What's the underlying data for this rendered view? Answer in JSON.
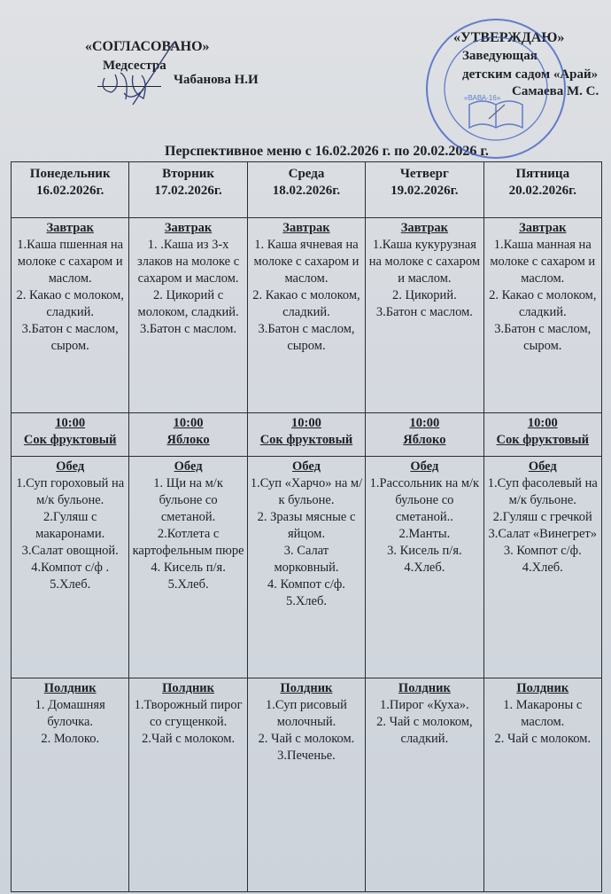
{
  "approval_left": {
    "label": "«СОГЛАСОВАНО»",
    "role": "Медсестра",
    "name": "Чабанова Н.И"
  },
  "approval_right": {
    "label": "«УТВЕРЖДАЮ»",
    "role": "Заведующая",
    "org": "детским садом «Арай»",
    "name": "Самаева М. С."
  },
  "stamp": {
    "text": "Республикасы Акмола облысы Атбасар ауданы ... «Арай» бөбекжайы",
    "center": "«ВАВА-16»"
  },
  "title": "Перспективное меню с 16.02.2026 г. по 20.02.2026 г.",
  "colors": {
    "paper": "#d5d9df",
    "ink": "#1d2026",
    "stamp": "#3a5bc0"
  },
  "days": [
    {
      "day": "Понедельник",
      "date": "16.02.2026г.",
      "meals": [
        {
          "title": "Завтрак",
          "items": [
            "1.Каша пшенная на молоке с сахаром и маслом.",
            "2. Какао с молоком, сладкий.",
            "3.Батон с маслом, сыром."
          ]
        },
        {
          "title": "10:00",
          "items": [
            "Сок фруктовый"
          ]
        },
        {
          "title": "Обед",
          "items": [
            "1.Суп гороховый на м/к бульоне.",
            "2.Гуляш с макаронами.",
            "3.Салат овощной.",
            "4.Компот с/ф .",
            "5.Хлеб."
          ]
        },
        {
          "title": "Полдник",
          "items": [
            "1. Домашняя булочка.",
            "2. Молоко."
          ]
        }
      ]
    },
    {
      "day": "Вторник",
      "date": "17.02.2026г.",
      "meals": [
        {
          "title": "Завтрак",
          "items": [
            "1. .Каша из 3-х злаков на молоке с сахаром и маслом.",
            "2. Цикорий с молоком, сладкий.",
            "3.Батон с маслом."
          ]
        },
        {
          "title": "10:00",
          "items": [
            "Яблоко"
          ]
        },
        {
          "title": "Обед",
          "items": [
            "1. Щи на м/к бульоне со сметаной.",
            "2.Котлета с картофельным пюре",
            "4. Кисель п/я.",
            "5.Хлеб."
          ]
        },
        {
          "title": "Полдник",
          "items": [
            "1.Творожный пирог со сгущенкой.",
            "2.Чай с молоком."
          ]
        }
      ]
    },
    {
      "day": "Среда",
      "date": "18.02.2026г.",
      "meals": [
        {
          "title": "Завтрак",
          "items": [
            "1. Каша ячневая на молоке с сахаром и маслом.",
            "2. Какао с молоком, сладкий.",
            "3.Батон с маслом, сыром."
          ]
        },
        {
          "title": "10:00",
          "items": [
            "Сок фруктовый"
          ]
        },
        {
          "title": "Обед",
          "items": [
            "1.Суп «Харчо» на м/к бульоне.",
            "2. Зразы мясные с яйцом.",
            "3. Салат морковный.",
            "4. Компот с/ф.",
            "5.Хлеб."
          ]
        },
        {
          "title": "Полдник",
          "items": [
            "1.Суп рисовый молочный.",
            "2. Чай с молоком.",
            "3.Печенье."
          ]
        }
      ]
    },
    {
      "day": "Четверг",
      "date": "19.02.2026г.",
      "meals": [
        {
          "title": "Завтрак",
          "items": [
            "1.Каша кукурузная на молоке с сахаром и маслом.",
            "2. Цикорий.",
            "3.Батон с маслом."
          ]
        },
        {
          "title": "10:00",
          "items": [
            "Яблоко"
          ]
        },
        {
          "title": "Обед",
          "items": [
            "1.Рассольник на м/к бульоне со сметаной..",
            "2.Манты.",
            "3. Кисель п/я.",
            "4.Хлеб."
          ]
        },
        {
          "title": "Полдник",
          "items": [
            "1.Пирог «Куха».",
            "2. Чай с молоком, сладкий."
          ]
        }
      ]
    },
    {
      "day": "Пятница",
      "date": "20.02.2026г.",
      "meals": [
        {
          "title": "Завтрак",
          "items": [
            "1.Каша манная на молоке с сахаром и маслом.",
            "2. Какао с молоком, сладкий.",
            "3.Батон с маслом, сыром."
          ]
        },
        {
          "title": "10:00",
          "items": [
            "Сок фруктовый"
          ]
        },
        {
          "title": "Обед",
          "items": [
            "1.Суп фасолевый на м/к бульоне.",
            "2.Гуляш с гречкой",
            "3.Салат «Винегрет»",
            "3. Компот с/ф.",
            "4.Хлеб."
          ]
        },
        {
          "title": "Полдник",
          "items": [
            "1. Макароны с маслом.",
            "2. Чай с молоком."
          ]
        }
      ]
    }
  ]
}
